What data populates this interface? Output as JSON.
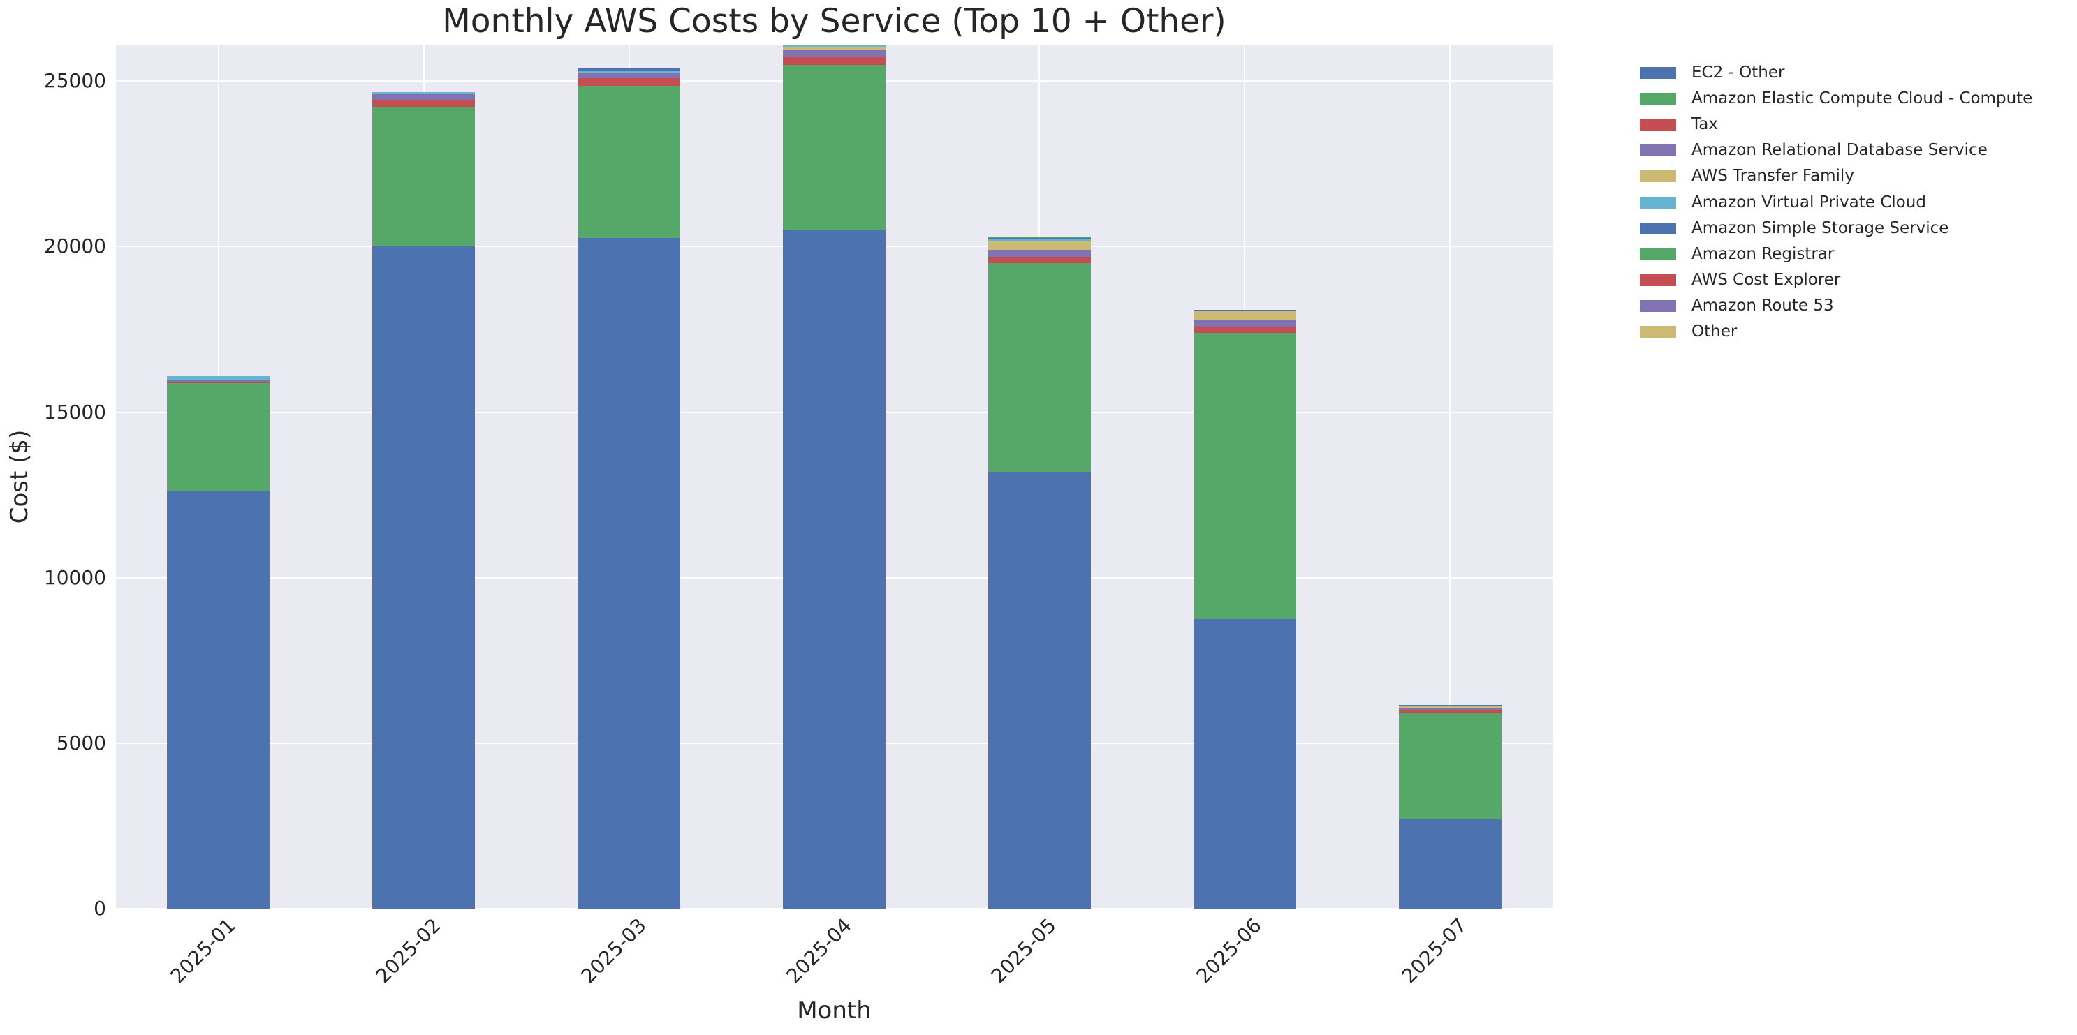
{
  "chart_data": {
    "type": "bar",
    "stacked": true,
    "title": "Monthly AWS Costs by Service (Top 10 + Other)",
    "xlabel": "Month",
    "ylabel": "Cost ($)",
    "categories": [
      "2025-01",
      "2025-02",
      "2025-03",
      "2025-04",
      "2025-05",
      "2025-06",
      "2025-07"
    ],
    "series": [
      {
        "name": "EC2 - Other",
        "color": "#4C72B0",
        "values": [
          12630,
          20020,
          20265,
          20490,
          13200,
          8760,
          2695
        ]
      },
      {
        "name": "Amazon Elastic Compute Cloud - Compute",
        "color": "#55A868",
        "values": [
          3240,
          4185,
          4585,
          5000,
          6300,
          8630,
          3230
        ]
      },
      {
        "name": "Tax",
        "color": "#C44E52",
        "values": [
          35,
          225,
          230,
          235,
          185,
          200,
          65
        ]
      },
      {
        "name": "Amazon Relational Database Service",
        "color": "#8172B2",
        "values": [
          85,
          175,
          185,
          210,
          225,
          180,
          55
        ]
      },
      {
        "name": "AWS Transfer Family",
        "color": "#CCB974",
        "values": [
          0,
          0,
          0,
          105,
          250,
          270,
          65
        ]
      },
      {
        "name": "Amazon Virtual Private Cloud",
        "color": "#64B5CD",
        "values": [
          90,
          70,
          40,
          30,
          85,
          0,
          0
        ]
      },
      {
        "name": "Amazon Simple Storage Service",
        "color": "#4C72B0",
        "values": [
          0,
          0,
          105,
          110,
          20,
          55,
          40
        ]
      },
      {
        "name": "Amazon Registrar",
        "color": "#55A868",
        "values": [
          0,
          0,
          0,
          0,
          40,
          0,
          0
        ]
      },
      {
        "name": "AWS Cost Explorer",
        "color": "#C44E52",
        "values": [
          0,
          0,
          0,
          0,
          0,
          0,
          0
        ]
      },
      {
        "name": "Amazon Route 53",
        "color": "#8172B2",
        "values": [
          0,
          0,
          0,
          0,
          0,
          0,
          0
        ]
      },
      {
        "name": "Other",
        "color": "#CCB974",
        "values": [
          0,
          0,
          0,
          0,
          0,
          0,
          0
        ]
      }
    ],
    "totals": [
      16080,
      24675,
      25410,
      26180,
      20305,
      18095,
      6150
    ],
    "ylim": [
      0,
      26100
    ],
    "yticks": [
      0,
      5000,
      10000,
      15000,
      20000,
      25000
    ],
    "grid": true,
    "plot_background": "#EAEAF2",
    "gridline_color": "#ffffff",
    "legend_position": "right-outside"
  }
}
